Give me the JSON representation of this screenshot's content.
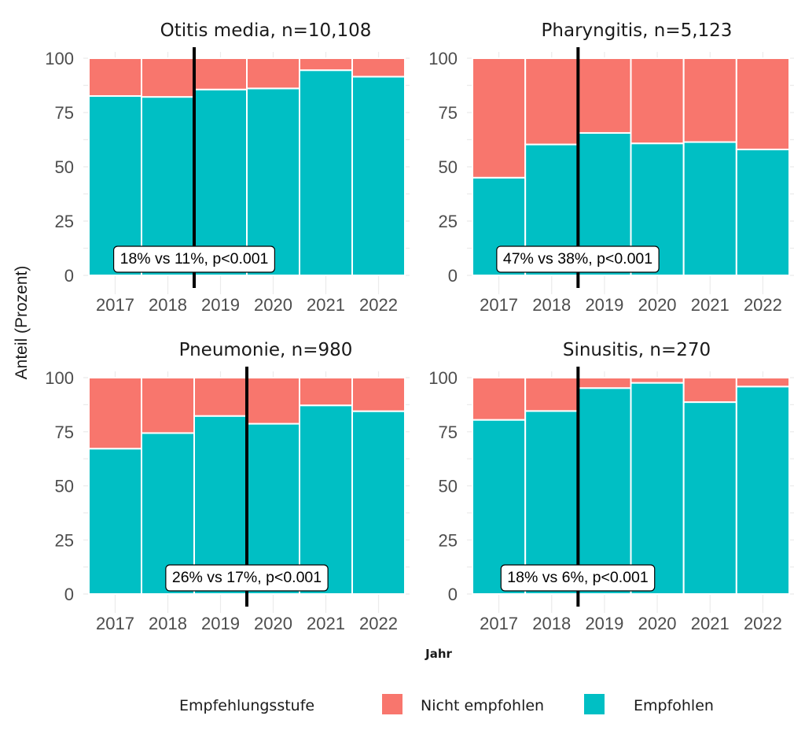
{
  "chart_data": {
    "type": "bar",
    "subtype": "stacked-percent-faceted",
    "xlabel": "Jahr",
    "ylabel": "Anteil (Prozent)",
    "ylim": [
      0,
      100
    ],
    "yticks": [
      0,
      25,
      50,
      75,
      100
    ],
    "categories": [
      "2017",
      "2018",
      "2019",
      "2020",
      "2021",
      "2022"
    ],
    "colors": {
      "Nicht empfohlen": "#F8766D",
      "Empfohlen": "#00BFC4"
    },
    "legend": {
      "title": "Empfehlungsstufe",
      "position": "bottom",
      "entries": [
        "Nicht empfohlen",
        "Empfohlen"
      ]
    },
    "grid": true,
    "panels": [
      {
        "title": "Otitis media, n=10,108",
        "cutoff_between": [
          "2018",
          "2019"
        ],
        "annotation": "18% vs 11%, p<0.001",
        "series": [
          {
            "name": "Empfohlen",
            "values": [
              82.6,
              82.2,
              85.6,
              86.1,
              94.5,
              91.5
            ]
          },
          {
            "name": "Nicht empfohlen",
            "values": [
              17.4,
              17.8,
              14.4,
              13.9,
              5.5,
              8.5
            ]
          }
        ]
      },
      {
        "title": "Pharyngitis, n=5,123",
        "cutoff_between": [
          "2018",
          "2019"
        ],
        "annotation": "47% vs 38%, p<0.001",
        "series": [
          {
            "name": "Empfohlen",
            "values": [
              45.0,
              60.3,
              65.6,
              60.8,
              61.4,
              58.0
            ]
          },
          {
            "name": "Nicht empfohlen",
            "values": [
              55.0,
              39.7,
              34.4,
              39.2,
              38.6,
              42.0
            ]
          }
        ]
      },
      {
        "title": "Pneumonie, n=980",
        "cutoff_between": [
          "2019",
          "2020"
        ],
        "annotation": "26% vs 17%, p<0.001",
        "series": [
          {
            "name": "Empfohlen",
            "values": [
              67.2,
              74.4,
              82.3,
              78.7,
              87.2,
              84.5
            ]
          },
          {
            "name": "Nicht empfohlen",
            "values": [
              32.8,
              25.6,
              17.7,
              21.3,
              12.8,
              15.5
            ]
          }
        ]
      },
      {
        "title": "Sinusitis, n=270",
        "cutoff_between": [
          "2018",
          "2019"
        ],
        "annotation": "18% vs 6%, p<0.001",
        "series": [
          {
            "name": "Empfohlen",
            "values": [
              80.5,
              84.6,
              95.2,
              97.6,
              88.7,
              95.9
            ]
          },
          {
            "name": "Nicht empfohlen",
            "values": [
              19.5,
              15.4,
              4.8,
              2.4,
              11.3,
              4.1
            ]
          }
        ]
      }
    ]
  }
}
